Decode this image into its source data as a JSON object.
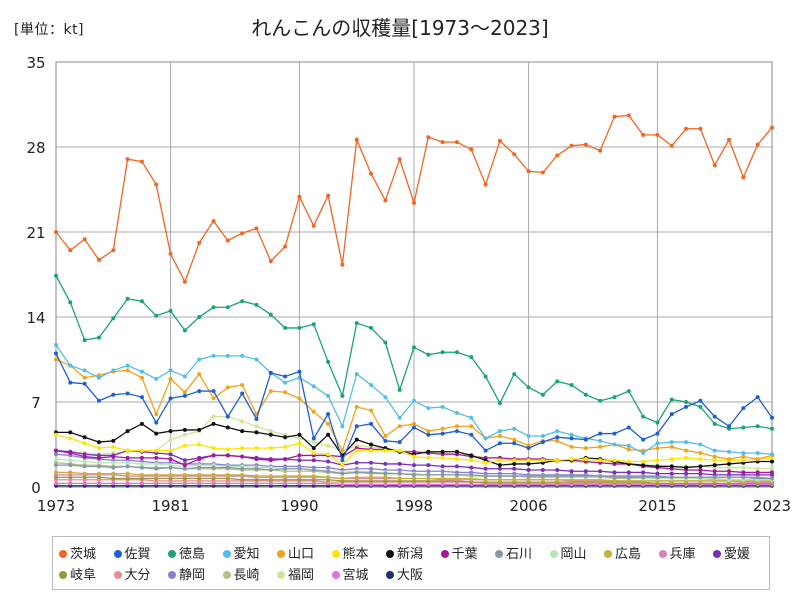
{
  "header": {
    "unit": "[単位：kt]",
    "title": "れんこんの収穫量[1973～2023]"
  },
  "chart_data": {
    "type": "line",
    "title": "れんこんの収穫量[1973～2023]",
    "ylabel": "[単位：kt]",
    "xlim": [
      1973,
      2023
    ],
    "ylim": [
      0,
      35
    ],
    "x_ticks": [
      1973,
      1981,
      1990,
      1998,
      2006,
      2015,
      2023
    ],
    "y_ticks": [
      0,
      7,
      14,
      21,
      28,
      35
    ],
    "grid": true,
    "legend_position": "bottom",
    "x": [
      1973,
      1974,
      1975,
      1976,
      1977,
      1978,
      1979,
      1980,
      1981,
      1982,
      1983,
      1984,
      1985,
      1986,
      1987,
      1988,
      1989,
      1990,
      1991,
      1992,
      1993,
      1994,
      1995,
      1996,
      1997,
      1998,
      1999,
      2000,
      2001,
      2002,
      2003,
      2004,
      2005,
      2006,
      2007,
      2008,
      2009,
      2010,
      2011,
      2012,
      2013,
      2014,
      2015,
      2016,
      2017,
      2018,
      2019,
      2020,
      2021,
      2022,
      2023
    ],
    "series": [
      {
        "name": "茨城",
        "color": "#f26522",
        "values": [
          21.0,
          19.5,
          20.4,
          18.7,
          19.5,
          27.0,
          26.8,
          24.9,
          19.2,
          16.9,
          20.1,
          21.9,
          20.3,
          20.9,
          21.3,
          18.6,
          19.8,
          23.9,
          21.5,
          24.0,
          18.3,
          28.6,
          25.8,
          23.6,
          27.0,
          23.4,
          28.8,
          28.4,
          28.4,
          27.8,
          24.9,
          28.5,
          27.4,
          26.0,
          25.9,
          27.3,
          28.1,
          28.2,
          27.7,
          30.5,
          30.6,
          29.0,
          29.0,
          28.1,
          29.5,
          29.5,
          26.5,
          28.6,
          25.5,
          28.2,
          29.6
        ]
      },
      {
        "name": "佐賀",
        "color": "#1f5fd1",
        "values": [
          11.0,
          8.6,
          8.5,
          7.1,
          7.6,
          7.7,
          7.4,
          5.3,
          7.3,
          7.5,
          7.9,
          7.9,
          5.8,
          7.7,
          5.6,
          9.4,
          9.1,
          9.5,
          4.0,
          6.0,
          2.2,
          5.0,
          5.2,
          3.8,
          3.7,
          4.9,
          4.3,
          4.4,
          4.6,
          4.3,
          3.0,
          3.6,
          3.6,
          3.2,
          3.7,
          4.1,
          4.0,
          3.9,
          4.4,
          4.4,
          4.9,
          3.9,
          4.4,
          6.0,
          6.6,
          7.1,
          5.8,
          5.0,
          6.5,
          7.4,
          5.7
        ]
      },
      {
        "name": "徳島",
        "color": "#1aa378",
        "values": [
          17.4,
          15.2,
          12.1,
          12.3,
          13.9,
          15.5,
          15.3,
          14.1,
          14.5,
          12.9,
          14.0,
          14.8,
          14.8,
          15.3,
          15.0,
          14.2,
          13.1,
          13.1,
          13.4,
          10.3,
          7.5,
          13.5,
          13.1,
          11.9,
          8.0,
          11.5,
          10.9,
          11.1,
          11.1,
          10.7,
          9.1,
          6.9,
          9.3,
          8.2,
          7.6,
          8.7,
          8.4,
          7.6,
          7.1,
          7.4,
          7.9,
          5.8,
          5.3,
          7.2,
          7.0,
          6.6,
          5.2,
          4.8,
          4.9,
          5.0,
          4.8
        ]
      },
      {
        "name": "愛知",
        "color": "#55bde6",
        "values": [
          11.7,
          10.0,
          9.6,
          9.0,
          9.6,
          10.0,
          9.5,
          8.9,
          9.6,
          9.1,
          10.5,
          10.8,
          10.8,
          10.8,
          10.5,
          9.4,
          8.6,
          9.0,
          8.3,
          7.5,
          5.0,
          9.3,
          8.4,
          7.4,
          5.7,
          7.1,
          6.5,
          6.6,
          6.1,
          5.7,
          4.0,
          4.6,
          4.8,
          4.2,
          4.2,
          4.6,
          4.3,
          4.0,
          3.8,
          3.5,
          3.4,
          2.8,
          3.6,
          3.7,
          3.7,
          3.5,
          3.0,
          2.9,
          2.8,
          2.8,
          2.7
        ]
      },
      {
        "name": "山口",
        "color": "#f2a31a",
        "values": [
          10.5,
          10.0,
          9.0,
          9.2,
          9.5,
          9.6,
          9.0,
          6.0,
          8.9,
          7.8,
          9.3,
          7.3,
          8.2,
          8.4,
          6.0,
          7.9,
          7.8,
          7.3,
          6.2,
          5.2,
          3.0,
          6.6,
          6.3,
          4.2,
          5.0,
          5.2,
          4.6,
          4.8,
          5.0,
          5.0,
          4.0,
          4.2,
          3.9,
          3.4,
          3.8,
          3.8,
          3.3,
          3.2,
          3.3,
          3.5,
          3.1,
          3.0,
          3.2,
          3.3,
          3.0,
          2.8,
          2.5,
          2.3,
          2.5,
          2.3,
          2.6
        ]
      },
      {
        "name": "熊本",
        "color": "#ffe600",
        "values": [
          4.3,
          4.0,
          3.6,
          3.2,
          3.3,
          3.0,
          3.0,
          3.0,
          3.0,
          3.4,
          3.5,
          3.2,
          3.1,
          3.2,
          3.2,
          3.2,
          3.3,
          3.6,
          2.8,
          2.7,
          1.8,
          3.0,
          3.0,
          3.0,
          3.0,
          2.5,
          2.4,
          2.4,
          2.3,
          2.2,
          2.0,
          2.2,
          2.2,
          2.2,
          2.2,
          2.2,
          2.3,
          2.3,
          2.2,
          2.2,
          2.1,
          2.1,
          2.2,
          2.3,
          2.4,
          2.3,
          2.2,
          2.2,
          2.2,
          2.3,
          2.4
        ]
      },
      {
        "name": "新潟",
        "color": "#111111",
        "values": [
          4.5,
          4.5,
          4.1,
          3.7,
          3.8,
          4.6,
          5.2,
          4.4,
          4.6,
          4.7,
          4.7,
          5.2,
          4.9,
          4.6,
          4.5,
          4.3,
          4.1,
          4.3,
          3.2,
          4.3,
          2.6,
          3.9,
          3.5,
          3.2,
          2.9,
          2.7,
          2.9,
          2.9,
          2.9,
          2.6,
          2.2,
          1.8,
          1.9,
          1.9,
          2.0,
          2.2,
          2.2,
          2.4,
          2.3,
          2.1,
          1.9,
          1.8,
          1.7,
          1.7,
          1.6,
          1.7,
          1.8,
          1.9,
          2.0,
          2.1,
          2.1
        ]
      },
      {
        "name": "千葉",
        "color": "#a8179a",
        "values": [
          3.0,
          2.8,
          2.5,
          2.4,
          2.5,
          2.4,
          2.4,
          2.4,
          2.3,
          1.8,
          2.3,
          2.6,
          2.6,
          2.5,
          2.3,
          2.2,
          2.3,
          2.6,
          2.6,
          2.6,
          2.5,
          3.2,
          3.1,
          3.1,
          2.9,
          2.9,
          2.8,
          2.7,
          2.7,
          2.5,
          2.4,
          2.4,
          2.3,
          2.3,
          2.3,
          2.2,
          2.2,
          2.1,
          2.0,
          1.9,
          1.9,
          1.7,
          1.6,
          1.5,
          1.4,
          1.4,
          1.3,
          1.3,
          1.2,
          1.2,
          1.2
        ]
      },
      {
        "name": "石川",
        "color": "#8a97a6",
        "values": [
          1.8,
          1.8,
          1.7,
          1.7,
          1.6,
          1.7,
          1.6,
          1.5,
          1.6,
          1.5,
          1.6,
          1.6,
          1.6,
          1.5,
          1.5,
          1.4,
          1.5,
          1.5,
          1.4,
          1.3,
          1.1,
          1.2,
          1.2,
          1.1,
          1.1,
          1.0,
          1.0,
          1.0,
          1.0,
          1.0,
          0.9,
          0.9,
          0.9,
          0.9,
          0.9,
          0.9,
          0.9,
          0.9,
          0.9,
          0.8,
          0.8,
          0.8,
          0.8,
          0.8,
          0.8,
          0.8,
          0.8,
          0.8,
          0.8,
          0.8,
          0.7
        ]
      },
      {
        "name": "岡山",
        "color": "#b5e8b0",
        "values": [
          2.3,
          2.2,
          2.1,
          2.0,
          2.0,
          2.0,
          1.9,
          1.9,
          1.8,
          1.7,
          1.8,
          1.8,
          1.7,
          1.7,
          1.6,
          1.6,
          1.5,
          1.5,
          1.4,
          1.3,
          1.2,
          1.3,
          1.2,
          1.2,
          1.1,
          1.1,
          1.0,
          1.0,
          1.0,
          0.9,
          0.9,
          0.9,
          0.9,
          0.9,
          0.9,
          0.9,
          0.8,
          0.8,
          0.8,
          0.8,
          0.8,
          0.7,
          0.7,
          0.7,
          0.7,
          0.7,
          0.7,
          0.6,
          0.6,
          0.6,
          0.6
        ]
      },
      {
        "name": "広島",
        "color": "#c9b038",
        "values": [
          1.2,
          1.2,
          1.1,
          1.1,
          1.1,
          1.1,
          1.0,
          1.0,
          1.0,
          1.0,
          1.0,
          1.0,
          1.0,
          1.0,
          0.9,
          0.9,
          0.9,
          0.9,
          0.9,
          0.8,
          0.7,
          0.8,
          0.8,
          0.8,
          0.7,
          0.7,
          0.7,
          0.7,
          0.7,
          0.7,
          0.6,
          0.6,
          0.6,
          0.6,
          0.6,
          0.6,
          0.6,
          0.6,
          0.6,
          0.5,
          0.5,
          0.5,
          0.5,
          0.5,
          0.5,
          0.5,
          0.5,
          0.5,
          0.5,
          0.5,
          0.5
        ]
      },
      {
        "name": "兵庫",
        "color": "#d984b2",
        "values": [
          1.0,
          1.0,
          1.0,
          1.0,
          1.0,
          0.9,
          0.9,
          0.9,
          0.9,
          0.9,
          0.9,
          0.9,
          0.9,
          0.9,
          0.8,
          0.8,
          0.8,
          0.8,
          0.8,
          0.8,
          0.7,
          0.7,
          0.7,
          0.7,
          0.7,
          0.7,
          0.7,
          0.6,
          0.6,
          0.6,
          0.6,
          0.6,
          0.6,
          0.6,
          0.6,
          0.6,
          0.5,
          0.5,
          0.5,
          0.5,
          0.5,
          0.5,
          0.5,
          0.5,
          0.5,
          0.5,
          0.5,
          0.5,
          0.4,
          0.4,
          0.4
        ]
      },
      {
        "name": "愛媛",
        "color": "#7a2fb8",
        "values": [
          3.0,
          2.9,
          2.7,
          2.6,
          2.6,
          3.0,
          2.9,
          2.8,
          2.7,
          2.2,
          2.4,
          2.6,
          2.6,
          2.5,
          2.4,
          2.3,
          2.3,
          2.2,
          2.2,
          2.1,
          1.8,
          2.0,
          2.0,
          1.9,
          1.9,
          1.8,
          1.8,
          1.7,
          1.7,
          1.6,
          1.5,
          1.5,
          1.5,
          1.4,
          1.4,
          1.4,
          1.3,
          1.3,
          1.3,
          1.2,
          1.2,
          1.2,
          1.1,
          1.1,
          1.1,
          1.1,
          1.0,
          1.0,
          1.0,
          1.0,
          1.0
        ]
      },
      {
        "name": "岐阜",
        "color": "#99993a",
        "values": [
          0.8,
          0.8,
          0.8,
          0.8,
          0.7,
          0.7,
          0.7,
          0.7,
          0.7,
          0.7,
          0.7,
          0.7,
          0.7,
          0.6,
          0.6,
          0.6,
          0.6,
          0.6,
          0.6,
          0.6,
          0.5,
          0.5,
          0.5,
          0.5,
          0.5,
          0.5,
          0.5,
          0.5,
          0.5,
          0.4,
          0.4,
          0.4,
          0.4,
          0.4,
          0.4,
          0.4,
          0.4,
          0.4,
          0.4,
          0.4,
          0.4,
          0.4,
          0.3,
          0.3,
          0.3,
          0.3,
          0.3,
          0.3,
          0.3,
          0.3,
          0.3
        ]
      },
      {
        "name": "大分",
        "color": "#e89090",
        "values": [
          0.6,
          0.6,
          0.6,
          0.6,
          0.6,
          0.6,
          0.6,
          0.5,
          0.5,
          0.5,
          0.5,
          0.5,
          0.5,
          0.5,
          0.5,
          0.5,
          0.5,
          0.5,
          0.5,
          0.4,
          0.4,
          0.4,
          0.4,
          0.4,
          0.4,
          0.4,
          0.4,
          0.4,
          0.4,
          0.4,
          0.3,
          0.3,
          0.3,
          0.3,
          0.3,
          0.3,
          0.3,
          0.3,
          0.3,
          0.3,
          0.3,
          0.3,
          0.3,
          0.3,
          0.3,
          0.3,
          0.3,
          0.3,
          0.3,
          0.3,
          0.3
        ]
      },
      {
        "name": "静岡",
        "color": "#8a7fd6",
        "values": [
          2.7,
          2.6,
          2.4,
          2.3,
          2.2,
          2.2,
          2.1,
          2.0,
          2.0,
          1.9,
          1.9,
          1.9,
          1.8,
          1.8,
          1.8,
          1.7,
          1.7,
          1.7,
          1.6,
          1.6,
          1.4,
          1.5,
          1.5,
          1.4,
          1.4,
          1.3,
          1.3,
          1.3,
          1.2,
          1.2,
          1.1,
          1.1,
          1.1,
          1.0,
          1.0,
          1.0,
          1.0,
          1.0,
          0.9,
          0.9,
          0.9,
          0.9,
          0.9,
          0.8,
          0.8,
          0.8,
          0.8,
          0.8,
          0.8,
          0.7,
          0.7
        ]
      },
      {
        "name": "長崎",
        "color": "#b7bf8a",
        "values": [
          2.0,
          1.9,
          1.8,
          1.8,
          1.7,
          1.7,
          1.6,
          1.6,
          1.6,
          1.5,
          1.5,
          1.5,
          1.5,
          1.4,
          1.4,
          1.4,
          1.3,
          1.3,
          1.3,
          1.2,
          1.1,
          1.2,
          1.1,
          1.1,
          1.1,
          1.0,
          1.0,
          1.0,
          1.0,
          0.9,
          0.9,
          0.9,
          0.9,
          0.8,
          0.8,
          0.8,
          0.8,
          0.8,
          0.8,
          0.7,
          0.7,
          0.7,
          0.7,
          0.7,
          0.7,
          0.7,
          0.6,
          0.6,
          0.6,
          0.6,
          0.6
        ]
      },
      {
        "name": "福岡",
        "color": "#cde69a",
        "values": [
          3.0,
          2.9,
          2.8,
          2.7,
          2.8,
          2.9,
          3.0,
          3.0,
          3.9,
          4.3,
          4.6,
          5.8,
          5.8,
          5.4,
          5.0,
          4.6,
          4.3,
          4.0,
          3.7,
          3.4,
          3.0,
          3.4,
          3.3,
          3.2,
          3.0,
          2.9,
          2.8,
          2.8,
          2.7,
          2.6,
          2.4,
          2.4,
          2.3,
          2.2,
          2.2,
          2.1,
          2.1,
          2.0,
          2.0,
          1.9,
          1.9,
          1.8,
          1.8,
          1.7,
          1.7,
          1.7,
          1.6,
          1.6,
          1.6,
          1.5,
          1.5
        ]
      },
      {
        "name": "宮城",
        "color": "#e36fe0",
        "values": [
          0.3,
          0.3,
          0.3,
          0.3,
          0.3,
          0.3,
          0.3,
          0.3,
          0.3,
          0.3,
          0.3,
          0.3,
          0.3,
          0.3,
          0.3,
          0.3,
          0.3,
          0.3,
          0.3,
          0.3,
          0.2,
          0.2,
          0.2,
          0.2,
          0.2,
          0.2,
          0.2,
          0.2,
          0.2,
          0.2,
          0.2,
          0.2,
          0.2,
          0.2,
          0.2,
          0.2,
          0.2,
          0.2,
          0.2,
          0.2,
          0.2,
          0.2,
          0.2,
          0.2,
          0.2,
          0.2,
          0.2,
          0.2,
          0.2,
          0.2,
          0.2
        ]
      },
      {
        "name": "大阪",
        "color": "#1c2f6b",
        "values": [
          0.1,
          0.1,
          0.1,
          0.1,
          0.1,
          0.1,
          0.1,
          0.1,
          0.1,
          0.1,
          0.1,
          0.1,
          0.1,
          0.1,
          0.1,
          0.1,
          0.1,
          0.1,
          0.1,
          0.1,
          0.1,
          0.1,
          0.1,
          0.1,
          0.1,
          0.1,
          0.1,
          0.1,
          0.1,
          0.1,
          0.1,
          0.1,
          0.1,
          0.1,
          0.1,
          0.1,
          0.1,
          0.1,
          0.1,
          0.1,
          0.1,
          0.1,
          0.1,
          0.1,
          0.1,
          0.1,
          0.1,
          0.1,
          0.1,
          0.1,
          0.1
        ]
      }
    ]
  }
}
